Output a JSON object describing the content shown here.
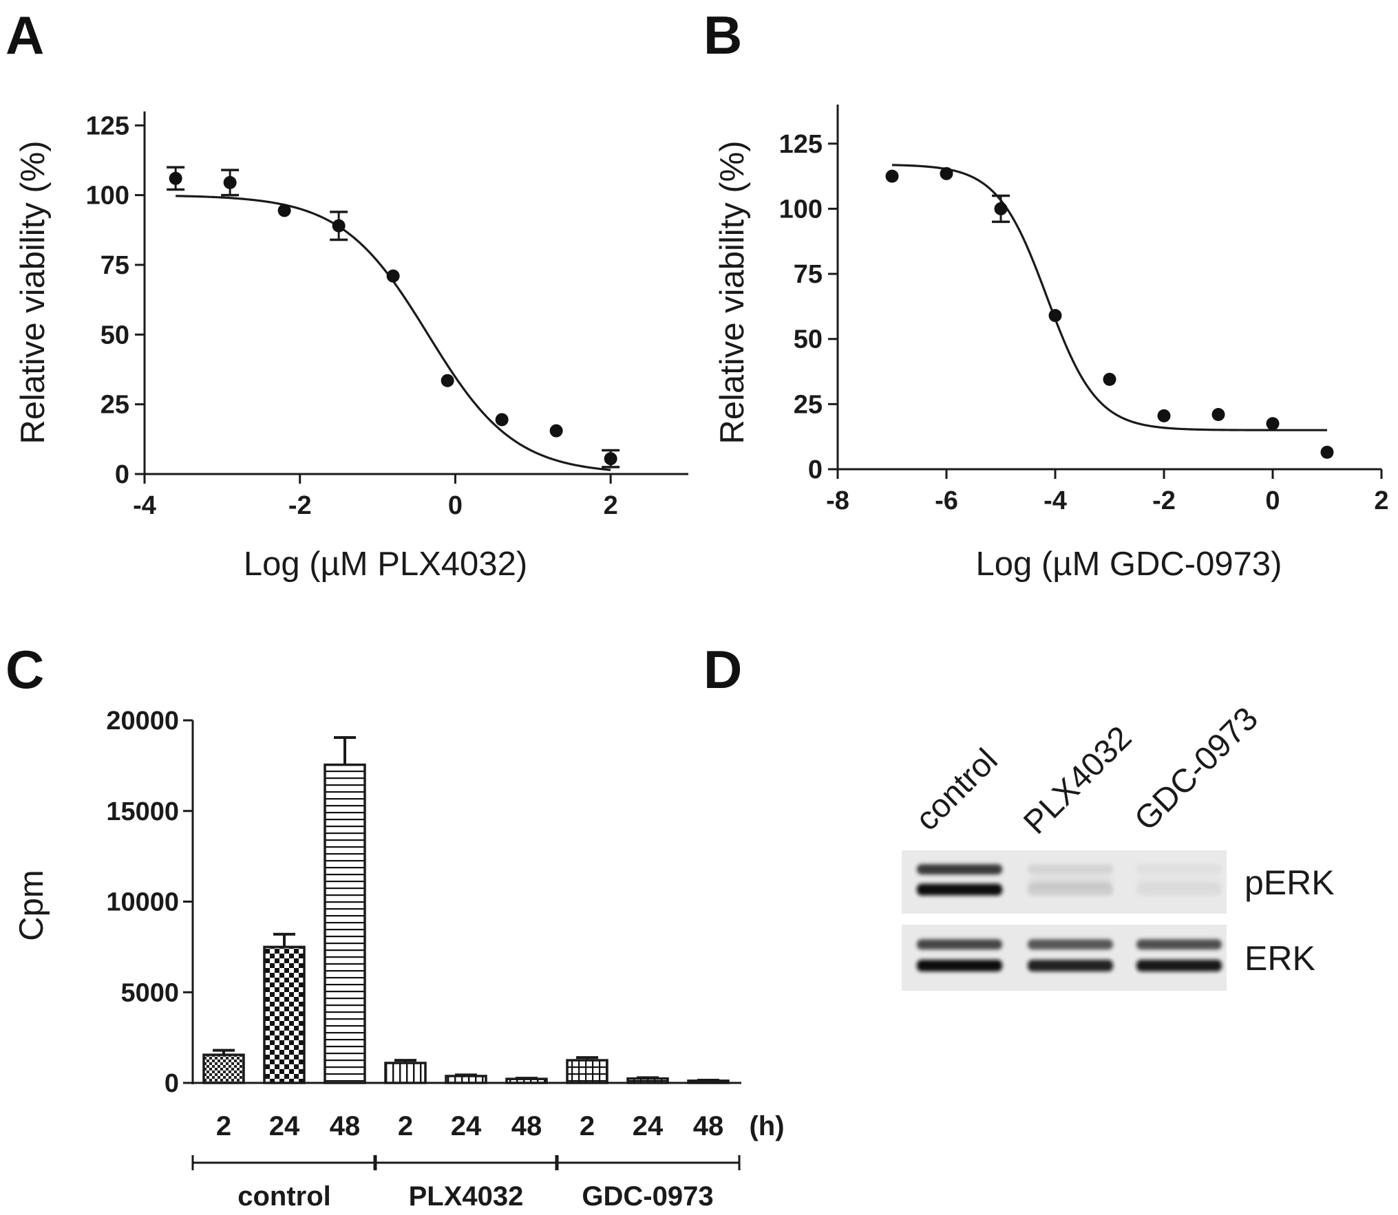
{
  "panel_labels": [
    "A",
    "B",
    "C",
    "D"
  ],
  "chart_data": [
    {
      "panel": "A",
      "type": "scatter",
      "xlabel": "Log (µM PLX4032)",
      "ylabel": "Relative viability (%)",
      "xlim": [
        -4,
        3
      ],
      "ylim": [
        0,
        130
      ],
      "x_ticks": [
        -4,
        -2,
        0,
        2
      ],
      "y_ticks": [
        0,
        25,
        50,
        75,
        100,
        125
      ],
      "points": [
        {
          "x": -3.6,
          "y": 106,
          "err": 4
        },
        {
          "x": -2.9,
          "y": 104.5,
          "err": 4.5
        },
        {
          "x": -2.2,
          "y": 94.5,
          "err": 0
        },
        {
          "x": -1.5,
          "y": 89,
          "err": 5
        },
        {
          "x": -0.8,
          "y": 71,
          "err": 0
        },
        {
          "x": -0.1,
          "y": 33.5,
          "err": 0
        },
        {
          "x": 0.6,
          "y": 19.5,
          "err": 0
        },
        {
          "x": 1.3,
          "y": 15.5,
          "err": 0
        },
        {
          "x": 2.0,
          "y": 5.5,
          "err": 3
        }
      ],
      "fit": {
        "top": 100,
        "bottom": 0,
        "log_ic50": -0.35,
        "hill": 0.78,
        "x_range": [
          -3.6,
          2.0
        ]
      }
    },
    {
      "panel": "B",
      "type": "scatter",
      "xlabel": "Log (µM GDC-0973)",
      "ylabel": "Relative viability (%)",
      "xlim": [
        -8,
        2
      ],
      "ylim": [
        0,
        140
      ],
      "x_ticks": [
        -8,
        -6,
        -4,
        -2,
        0,
        2
      ],
      "y_ticks": [
        0,
        25,
        50,
        75,
        100,
        125
      ],
      "points": [
        {
          "x": -7,
          "y": 112.5,
          "err": 0
        },
        {
          "x": -6,
          "y": 113.5,
          "err": 0
        },
        {
          "x": -5,
          "y": 100,
          "err": 5
        },
        {
          "x": -4,
          "y": 59,
          "err": 0
        },
        {
          "x": -3,
          "y": 34.5,
          "err": 0
        },
        {
          "x": -2,
          "y": 20.5,
          "err": 0
        },
        {
          "x": -1,
          "y": 21,
          "err": 0
        },
        {
          "x": 0,
          "y": 17.5,
          "err": 0
        },
        {
          "x": 1,
          "y": 6.5,
          "err": 0
        }
      ],
      "fit": {
        "top": 117,
        "bottom": 15,
        "log_ic50": -4.15,
        "hill": 0.95,
        "x_range": [
          -7,
          1
        ]
      }
    },
    {
      "panel": "C",
      "type": "bar",
      "ylabel": "Cpm",
      "ylim": [
        0,
        20000
      ],
      "y_ticks": [
        0,
        5000,
        10000,
        15000,
        20000
      ],
      "time_unit": "(h)",
      "groups": [
        {
          "name": "control",
          "bars": [
            {
              "time": "2",
              "value": 1550,
              "err": 250,
              "pattern": "checker-fine"
            },
            {
              "time": "24",
              "value": 7500,
              "err": 700,
              "pattern": "checker"
            },
            {
              "time": "48",
              "value": 17550,
              "err": 1500,
              "pattern": "hlines"
            }
          ]
        },
        {
          "name": "PLX4032",
          "bars": [
            {
              "time": "2",
              "value": 1100,
              "err": 150,
              "pattern": "vlines"
            },
            {
              "time": "24",
              "value": 380,
              "err": 60,
              "pattern": "vlines"
            },
            {
              "time": "48",
              "value": 220,
              "err": 40,
              "pattern": "vlines"
            }
          ]
        },
        {
          "name": "GDC-0973",
          "bars": [
            {
              "time": "2",
              "value": 1250,
              "err": 150,
              "pattern": "grid"
            },
            {
              "time": "24",
              "value": 240,
              "err": 50,
              "pattern": "grid"
            },
            {
              "time": "48",
              "value": 120,
              "err": 30,
              "pattern": "grid"
            }
          ]
        }
      ]
    }
  ],
  "blot": {
    "lanes": [
      "control",
      "PLX4032",
      "GDC-0973"
    ],
    "bands": [
      {
        "label": "pERK",
        "intensity": [
          1.0,
          0.12,
          0.05
        ]
      },
      {
        "label": "ERK",
        "intensity": [
          1.0,
          0.9,
          0.95
        ]
      }
    ]
  }
}
